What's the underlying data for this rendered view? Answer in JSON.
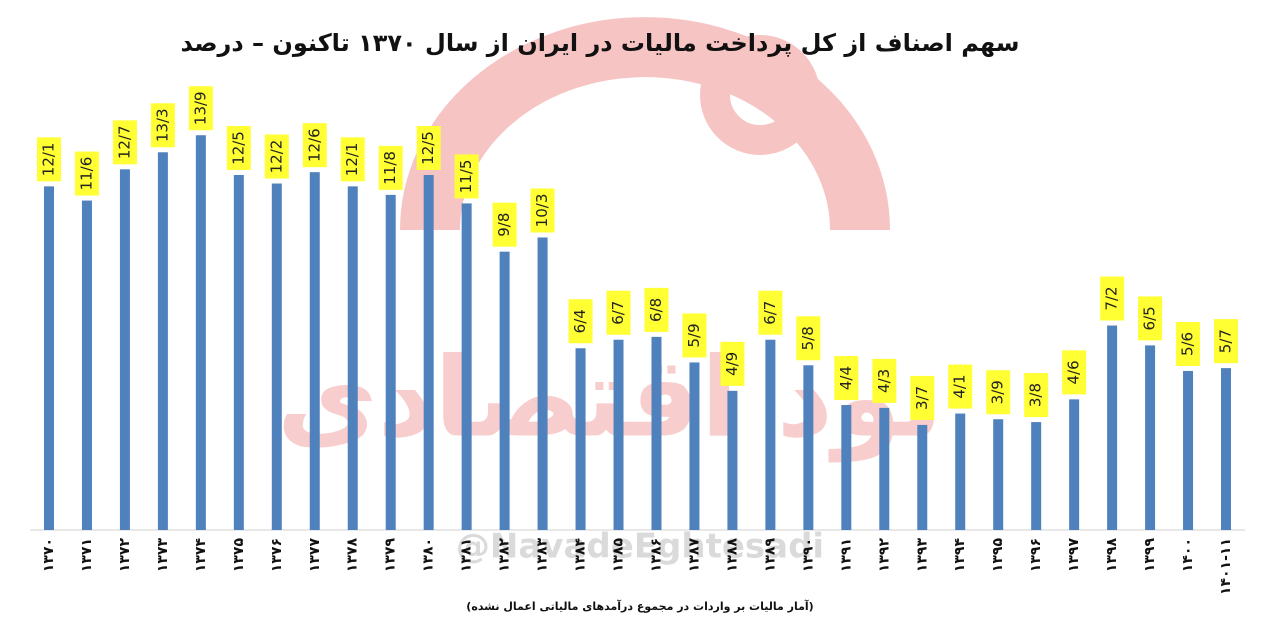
{
  "chart_data": {
    "type": "bar",
    "title": "سهم اصناف از کل پرداخت مالیات در ایران از سال ۱۳۷۰ تاکنون – درصد",
    "note": "(آمار مالیات بر واردات در مجموع درآمدهای مالیاتی اعمال نشده)",
    "watermark": "@NavadeEghtesadi",
    "logo_text": "نود اقتصادی",
    "categories": [
      "۱۳۷۰",
      "۱۳۷۱",
      "۱۳۷۲",
      "۱۳۷۳",
      "۱۳۷۴",
      "۱۳۷۵",
      "۱۳۷۶",
      "۱۳۷۷",
      "۱۳۷۸",
      "۱۳۷۹",
      "۱۳۸۰",
      "۱۳۸۱",
      "۱۳۸۲",
      "۱۳۸۳",
      "۱۳۸۴",
      "۱۳۸۵",
      "۱۳۸۶",
      "۱۳۸۷",
      "۱۳۸۸",
      "۱۳۸۹",
      "۱۳۹۰",
      "۱۳۹۱",
      "۱۳۹۲",
      "۱۳۹۳",
      "۱۳۹۴",
      "۱۳۹۵",
      "۱۳۹۶",
      "۱۳۹۷",
      "۱۳۹۸",
      "۱۳۹۹",
      "۱۴۰۰",
      "۱۴۰۱-۱۱"
    ],
    "values": [
      12.1,
      11.6,
      12.7,
      13.3,
      13.9,
      12.5,
      12.2,
      12.6,
      12.1,
      11.8,
      12.5,
      11.5,
      9.8,
      10.3,
      6.4,
      6.7,
      6.8,
      5.9,
      4.9,
      6.7,
      5.8,
      4.4,
      4.3,
      3.7,
      4.1,
      3.9,
      3.8,
      4.6,
      7.2,
      6.5,
      5.6,
      5.7
    ],
    "value_labels": [
      "12/1",
      "11/6",
      "12/7",
      "13/3",
      "13/9",
      "12/5",
      "12/2",
      "12/6",
      "12/1",
      "11/8",
      "12/5",
      "11/5",
      "9/8",
      "10/3",
      "6/4",
      "6/7",
      "6/8",
      "5/9",
      "4/9",
      "6/7",
      "5/8",
      "4/4",
      "4/3",
      "3/7",
      "4/1",
      "3/9",
      "3/8",
      "4/6",
      "7/2",
      "6/5",
      "5/6",
      "5/7"
    ],
    "color": "#4f81bd",
    "label_color": "#ffff33",
    "ylim": [
      0,
      15
    ]
  }
}
